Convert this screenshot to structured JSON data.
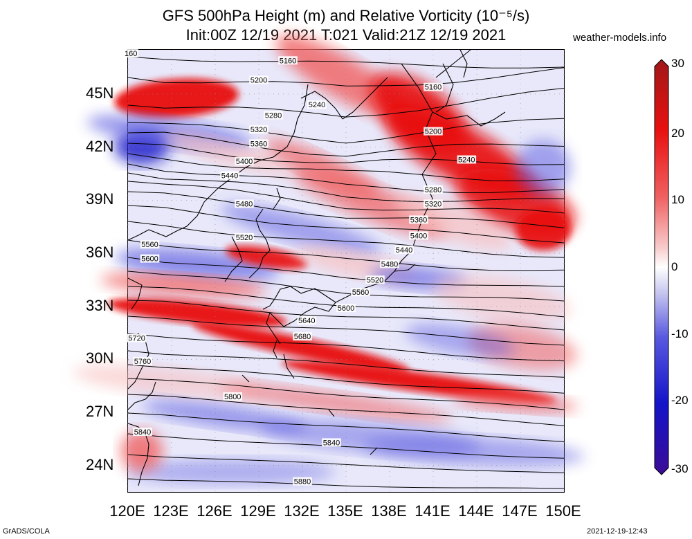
{
  "title": {
    "line1": "GFS 500hPa Height (m) and Relative Vorticity (10⁻⁵/s)",
    "line2": "Init:00Z 12/19 2021 T:021 Valid:21Z 12/19 2021"
  },
  "site": "weather-models.info",
  "credits": {
    "left": "GrADS/COLA",
    "right": "2021-12-19-12:43"
  },
  "map": {
    "lon_ticks": [
      "120E",
      "123E",
      "126E",
      "129E",
      "132E",
      "135E",
      "138E",
      "141E",
      "144E",
      "147E",
      "150E"
    ],
    "lat_ticks": [
      "45N",
      "42N",
      "39N",
      "36N",
      "33N",
      "30N",
      "27N",
      "24N"
    ],
    "lon_values": [
      120,
      123,
      126,
      129,
      132,
      135,
      138,
      141,
      144,
      147,
      150
    ],
    "lat_values": [
      45,
      42,
      39,
      36,
      33,
      30,
      27,
      24
    ],
    "extent": {
      "lon": [
        120,
        150
      ],
      "lat": [
        22.5,
        47.5
      ]
    },
    "contour_labels": [
      {
        "text": "160",
        "lon": 120.2,
        "lat": 47.3
      },
      {
        "text": "5160",
        "lon": 131.0,
        "lat": 46.9
      },
      {
        "text": "5160",
        "lon": 141.0,
        "lat": 45.4
      },
      {
        "text": "5200",
        "lon": 129.0,
        "lat": 45.8
      },
      {
        "text": "5200",
        "lon": 141.0,
        "lat": 42.9
      },
      {
        "text": "5240",
        "lon": 133.0,
        "lat": 44.4
      },
      {
        "text": "5240",
        "lon": 143.3,
        "lat": 41.3
      },
      {
        "text": "5280",
        "lon": 130.0,
        "lat": 43.8
      },
      {
        "text": "5280",
        "lon": 141.0,
        "lat": 39.6
      },
      {
        "text": "5320",
        "lon": 129.0,
        "lat": 43.0
      },
      {
        "text": "5320",
        "lon": 141.0,
        "lat": 38.8
      },
      {
        "text": "5360",
        "lon": 129.0,
        "lat": 42.2
      },
      {
        "text": "5360",
        "lon": 140.0,
        "lat": 37.9
      },
      {
        "text": "5400",
        "lon": 128.0,
        "lat": 41.2
      },
      {
        "text": "5400",
        "lon": 140.0,
        "lat": 37.0
      },
      {
        "text": "5440",
        "lon": 127.0,
        "lat": 40.4
      },
      {
        "text": "5440",
        "lon": 139.0,
        "lat": 36.2
      },
      {
        "text": "5480",
        "lon": 128.0,
        "lat": 38.8
      },
      {
        "text": "5480",
        "lon": 138.0,
        "lat": 35.4
      },
      {
        "text": "5520",
        "lon": 128.0,
        "lat": 36.9
      },
      {
        "text": "5520",
        "lon": 137.0,
        "lat": 34.5
      },
      {
        "text": "5560",
        "lon": 121.5,
        "lat": 36.5
      },
      {
        "text": "5560",
        "lon": 136.0,
        "lat": 33.8
      },
      {
        "text": "5600",
        "lon": 121.5,
        "lat": 35.7
      },
      {
        "text": "5600",
        "lon": 135.0,
        "lat": 32.9
      },
      {
        "text": "5640",
        "lon": 132.3,
        "lat": 32.2
      },
      {
        "text": "5680",
        "lon": 132.0,
        "lat": 31.3
      },
      {
        "text": "5720",
        "lon": 120.6,
        "lat": 31.2
      },
      {
        "text": "5760",
        "lon": 121.0,
        "lat": 29.9
      },
      {
        "text": "5800",
        "lon": 127.2,
        "lat": 27.9
      },
      {
        "text": "5840",
        "lon": 121.0,
        "lat": 25.9
      },
      {
        "text": "5840",
        "lon": 134.0,
        "lat": 25.3
      },
      {
        "text": "5880",
        "lon": 132.0,
        "lat": 23.1
      }
    ]
  },
  "colorbar": {
    "ticks": [
      "30",
      "20",
      "10",
      "0",
      "-10",
      "-20",
      "-30"
    ],
    "values": [
      30,
      20,
      10,
      0,
      -10,
      -20,
      -30
    ],
    "range": [
      -30,
      30
    ],
    "colors": {
      "max": "#a01818",
      "strong_pos": "#e81010",
      "pos": "#f06060",
      "weak_pos": "#f8c0c0",
      "zero": "#ffffff",
      "weak_neg": "#c8c8f0",
      "neg": "#5858e0",
      "strong_neg": "#1414c8",
      "min": "#3c0c96"
    }
  }
}
